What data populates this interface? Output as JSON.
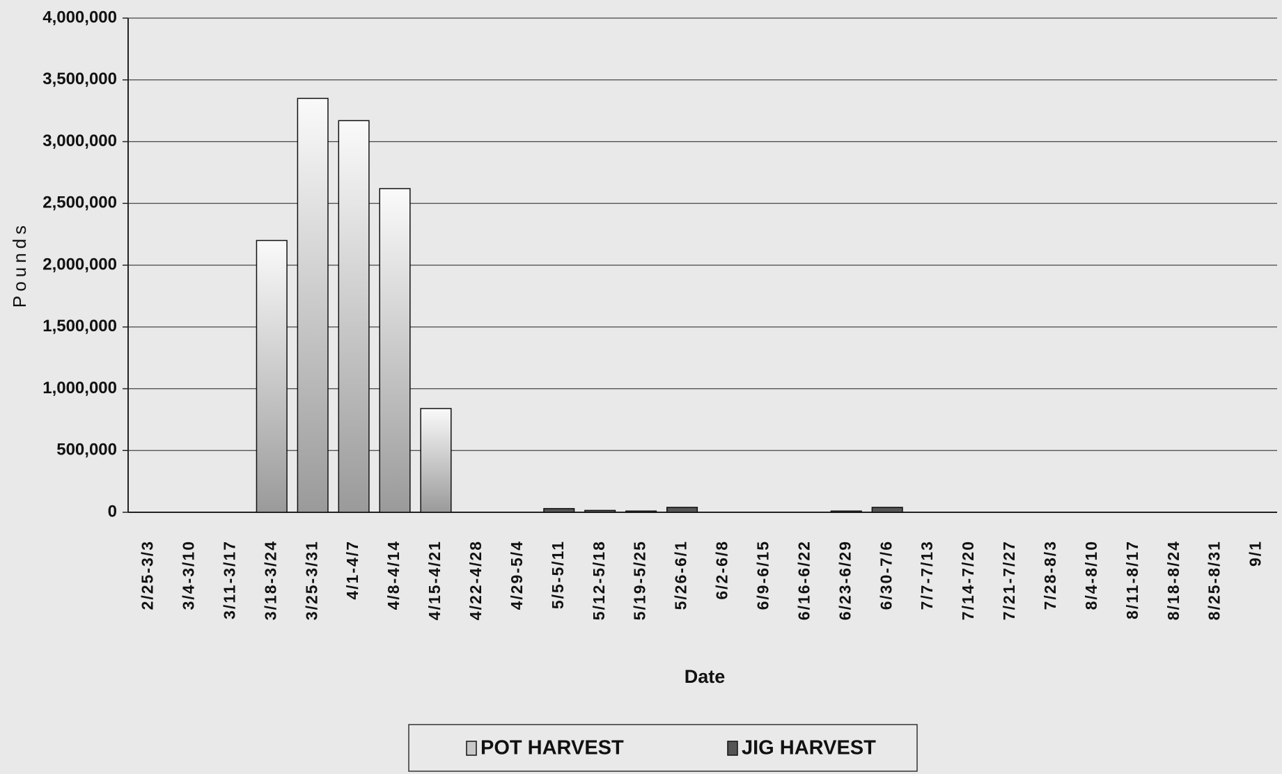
{
  "chart_data": {
    "type": "stacked-bar",
    "y_label": "Pounds",
    "x_label": "Date",
    "categories": [
      "2/25-3/3",
      "3/4-3/10",
      "3/11-3/17",
      "3/18-3/24",
      "3/25-3/31",
      "4/1-4/7",
      "4/8-4/14",
      "4/15-4/21",
      "4/22-4/28",
      "4/29-5/4",
      "5/5-5/11",
      "5/12-5/18",
      "5/19-5/25",
      "5/26-6/1",
      "6/2-6/8",
      "6/9-6/15",
      "6/16-6/22",
      "6/23-6/29",
      "6/30-7/6",
      "7/7-7/13",
      "7/14-7/20",
      "7/21-7/27",
      "7/28-8/3",
      "8/4-8/10",
      "8/11-8/17",
      "8/18-8/24",
      "8/25-8/31",
      "9/1"
    ],
    "series": [
      {
        "name": "POT HARVEST",
        "color": "#c8c8c8",
        "values": [
          0,
          0,
          0,
          2200000,
          3350000,
          3170000,
          2620000,
          840000,
          0,
          0,
          0,
          0,
          0,
          0,
          0,
          0,
          0,
          0,
          0,
          0,
          0,
          0,
          0,
          0,
          0,
          0,
          0,
          0
        ]
      },
      {
        "name": "JIG HARVEST",
        "color": "#555555",
        "values": [
          0,
          0,
          0,
          0,
          0,
          0,
          0,
          0,
          0,
          0,
          30000,
          15000,
          10000,
          40000,
          0,
          0,
          0,
          10000,
          40000,
          0,
          0,
          0,
          0,
          0,
          0,
          0,
          0,
          0
        ]
      }
    ],
    "ylim": [
      0,
      4000000
    ],
    "yticks": [
      0,
      {
        "value": 500000,
        "label": "500,000"
      },
      {
        "value": 1000000,
        "label": "1,000,000"
      },
      {
        "value": 1500000,
        "label": "1,500,000"
      },
      {
        "value": 2000000,
        "label": "2,000,000"
      },
      {
        "value": 2500000,
        "label": "2,500,000"
      },
      {
        "value": 3000000,
        "label": "3,000,000"
      },
      {
        "value": 3500000,
        "label": "3,500,000"
      },
      {
        "value": 4000000,
        "label": "4,000,000"
      }
    ],
    "grid": true,
    "legend": "bottom"
  }
}
